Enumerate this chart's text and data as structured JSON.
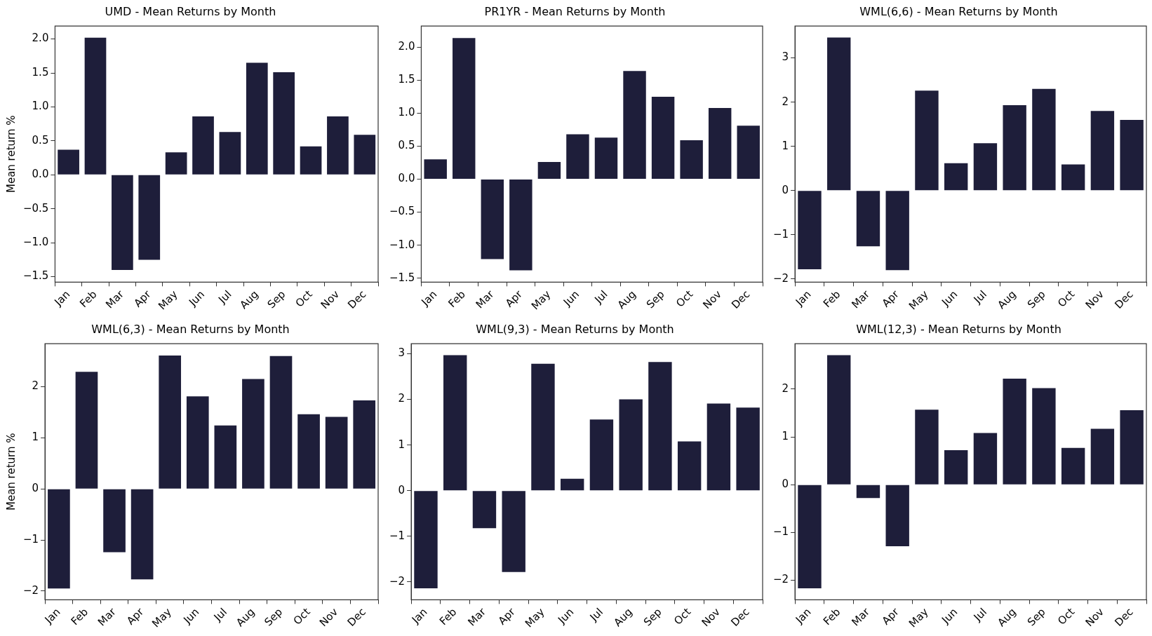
{
  "chart_data": [
    {
      "type": "bar",
      "title": "UMD - Mean Returns by Month",
      "ylabel": "Mean return %",
      "categories": [
        "Jan",
        "Feb",
        "Mar",
        "Apr",
        "May",
        "Jun",
        "Jul",
        "Aug",
        "Sep",
        "Oct",
        "Nov",
        "Dec"
      ],
      "values": [
        0.37,
        2.02,
        -1.4,
        -1.25,
        0.33,
        0.86,
        0.63,
        1.65,
        1.51,
        0.42,
        0.86,
        0.59
      ],
      "color": "#1e1e3a",
      "ylim": [
        -1.58,
        2.19
      ],
      "yticks": [
        {
          "value": -1.5,
          "label": "−1.5"
        },
        {
          "value": -1.0,
          "label": "−1.0"
        },
        {
          "value": -0.5,
          "label": "−0.5"
        },
        {
          "value": 0,
          "label": "0.0"
        },
        {
          "value": 0.5,
          "label": "0.5"
        },
        {
          "value": 1.0,
          "label": "1.0"
        },
        {
          "value": 1.5,
          "label": "1.5"
        },
        {
          "value": 2.0,
          "label": "2.0"
        }
      ]
    },
    {
      "type": "bar",
      "title": "PR1YR - Mean Returns by Month",
      "categories": [
        "Jan",
        "Feb",
        "Mar",
        "Apr",
        "May",
        "Jun",
        "Jul",
        "Aug",
        "Sep",
        "Oct",
        "Nov",
        "Dec"
      ],
      "values": [
        0.3,
        2.14,
        -1.21,
        -1.38,
        0.26,
        0.68,
        0.63,
        1.64,
        1.25,
        0.59,
        1.08,
        0.81
      ],
      "color": "#1e1e3a",
      "ylim": [
        -1.56,
        2.32
      ],
      "yticks": [
        {
          "value": -1.5,
          "label": "−1.5"
        },
        {
          "value": -1.0,
          "label": "−1.0"
        },
        {
          "value": -0.5,
          "label": "−0.5"
        },
        {
          "value": 0,
          "label": "0.0"
        },
        {
          "value": 0.5,
          "label": "0.5"
        },
        {
          "value": 1.0,
          "label": "1.0"
        },
        {
          "value": 1.5,
          "label": "1.5"
        },
        {
          "value": 2.0,
          "label": "2.0"
        }
      ]
    },
    {
      "type": "bar",
      "title": "WML(6,6) - Mean Returns by Month",
      "categories": [
        "Jan",
        "Feb",
        "Mar",
        "Apr",
        "May",
        "Jun",
        "Jul",
        "Aug",
        "Sep",
        "Oct",
        "Nov",
        "Dec"
      ],
      "values": [
        -1.78,
        3.46,
        -1.26,
        -1.8,
        2.26,
        0.62,
        1.07,
        1.93,
        2.3,
        0.59,
        1.8,
        1.6
      ],
      "color": "#1e1e3a",
      "ylim": [
        -2.07,
        3.72
      ],
      "yticks": [
        {
          "value": -2,
          "label": "−2"
        },
        {
          "value": -1,
          "label": "−1"
        },
        0,
        1,
        2,
        3
      ]
    },
    {
      "type": "bar",
      "title": "WML(6,3) - Mean Returns by Month",
      "ylabel": "Mean return %",
      "categories": [
        "Jan",
        "Feb",
        "Mar",
        "Apr",
        "May",
        "Jun",
        "Jul",
        "Aug",
        "Sep",
        "Oct",
        "Nov",
        "Dec"
      ],
      "values": [
        -1.95,
        2.29,
        -1.24,
        -1.77,
        2.61,
        1.81,
        1.24,
        2.15,
        2.6,
        1.46,
        1.41,
        1.73
      ],
      "color": "#1e1e3a",
      "ylim": [
        -2.17,
        2.84
      ],
      "yticks": [
        {
          "value": -2,
          "label": "−2"
        },
        {
          "value": -1,
          "label": "−1"
        },
        0,
        1,
        2
      ]
    },
    {
      "type": "bar",
      "title": "WML(9,3) - Mean Returns by Month",
      "categories": [
        "Jan",
        "Feb",
        "Mar",
        "Apr",
        "May",
        "Jun",
        "Jul",
        "Aug",
        "Sep",
        "Oct",
        "Nov",
        "Dec"
      ],
      "values": [
        -2.14,
        2.97,
        -0.82,
        -1.78,
        2.78,
        0.26,
        1.56,
        2.0,
        2.82,
        1.08,
        1.91,
        1.82
      ],
      "color": "#1e1e3a",
      "ylim": [
        -2.39,
        3.22
      ],
      "yticks": [
        {
          "value": -2,
          "label": "−2"
        },
        {
          "value": -1,
          "label": "−1"
        },
        0,
        1,
        2,
        3
      ]
    },
    {
      "type": "bar",
      "title": "WML(12,3) - Mean Returns by Month",
      "categories": [
        "Jan",
        "Feb",
        "Mar",
        "Apr",
        "May",
        "Jun",
        "Jul",
        "Aug",
        "Sep",
        "Oct",
        "Nov",
        "Dec"
      ],
      "values": [
        -2.17,
        2.71,
        -0.28,
        -1.29,
        1.57,
        0.72,
        1.08,
        2.22,
        2.02,
        0.77,
        1.17,
        1.56
      ],
      "color": "#1e1e3a",
      "ylim": [
        -2.41,
        2.95
      ],
      "yticks": [
        {
          "value": -2,
          "label": "−2"
        },
        {
          "value": -1,
          "label": "−1"
        },
        0,
        1,
        2
      ]
    }
  ]
}
